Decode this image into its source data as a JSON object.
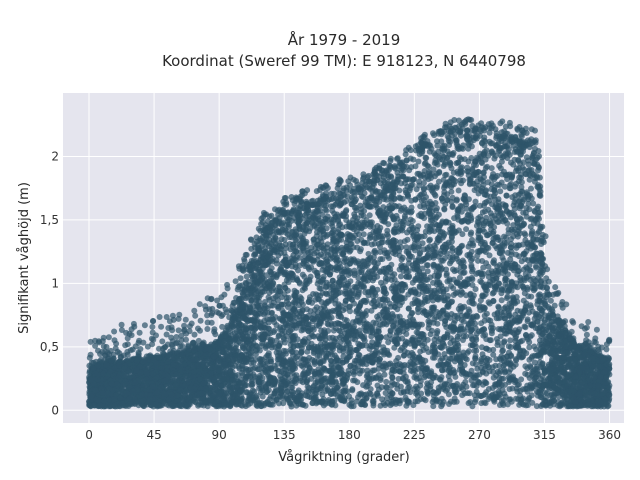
{
  "chart_data": {
    "type": "scatter",
    "title_lines": [
      "År 1979 - 2019",
      "Koordinat (Sweref 99 TM): E 918123, N 6440798"
    ],
    "xlabel": "Vågriktning (grader)",
    "ylabel": "Signifikant våghöjd (m)",
    "xlim": [
      -18,
      370
    ],
    "ylim": [
      -0.1,
      2.5
    ],
    "x_ticks": [
      0,
      45,
      90,
      135,
      180,
      225,
      270,
      315,
      360
    ],
    "x_tick_labels": [
      "0",
      "45",
      "90",
      "135",
      "180",
      "225",
      "270",
      "315",
      "360"
    ],
    "y_ticks": [
      0,
      0.5,
      1,
      1.5,
      2
    ],
    "y_tick_labels": [
      "0",
      "0,5",
      "1",
      "1,5",
      "2"
    ],
    "grid": true,
    "marker_color": "#2e5469",
    "background_color": "#e5e5ee",
    "envelope": {
      "x": [
        0,
        15,
        30,
        45,
        60,
        75,
        90,
        100,
        110,
        120,
        135,
        150,
        165,
        180,
        195,
        210,
        225,
        240,
        255,
        270,
        285,
        300,
        310,
        315,
        320,
        330,
        340,
        350,
        360
      ],
      "upper": [
        0.6,
        0.65,
        0.7,
        0.72,
        0.8,
        0.85,
        0.95,
        1.05,
        1.3,
        1.55,
        1.7,
        1.75,
        1.8,
        1.85,
        1.9,
        2.0,
        2.1,
        2.25,
        2.3,
        2.3,
        2.28,
        2.25,
        2.2,
        1.5,
        1.1,
        0.85,
        0.75,
        0.65,
        0.6
      ],
      "dense_upper": [
        0.35,
        0.38,
        0.4,
        0.42,
        0.45,
        0.5,
        0.55,
        0.75,
        1.1,
        1.4,
        1.55,
        1.6,
        1.65,
        1.7,
        1.8,
        1.9,
        2.0,
        2.15,
        2.2,
        2.2,
        2.15,
        2.1,
        2.0,
        1.2,
        0.8,
        0.6,
        0.5,
        0.45,
        0.4
      ]
    }
  }
}
